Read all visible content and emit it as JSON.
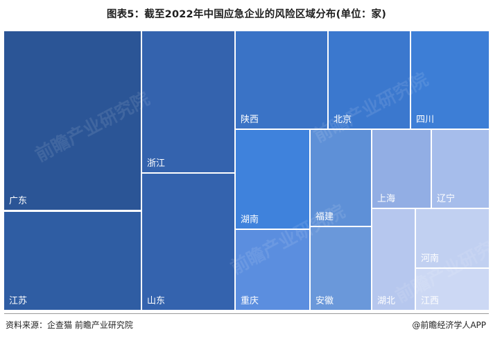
{
  "title": "图表5：截至2022年中国应急企业的风险区域分布(单位：家)",
  "source": "资料来源：企查猫 前瞻产业研究院",
  "brand": "@前瞻经济学人APP",
  "watermark": "前瞻产业研究院",
  "chart_data": {
    "type": "treemap",
    "title": "图表5：截至2022年中国应急企业的风险区域分布(单位：家)",
    "unit": "家",
    "categories": [
      "广东",
      "江苏",
      "浙江",
      "山东",
      "陕西",
      "北京",
      "四川",
      "湖南",
      "重庆",
      "福建",
      "安徽",
      "上海",
      "辽宁",
      "湖北",
      "河南",
      "江西"
    ],
    "colors": {
      "广东": "#2B5596",
      "江苏": "#2F5DA3",
      "浙江": "#3463AE",
      "山东": "#3463AE",
      "陕西": "#3A73C6",
      "北京": "#3B78CE",
      "四川": "#3D7ED6",
      "湖南": "#3F82DC",
      "重庆": "#5B8EDF",
      "福建": "#5E90D7",
      "安徽": "#6A98DA",
      "上海": "#92AEE4",
      "辽宁": "#A6BDEB",
      "湖北": "#B6C7EE",
      "河南": "#C1D0F1",
      "江西": "#CCD8F4"
    }
  }
}
